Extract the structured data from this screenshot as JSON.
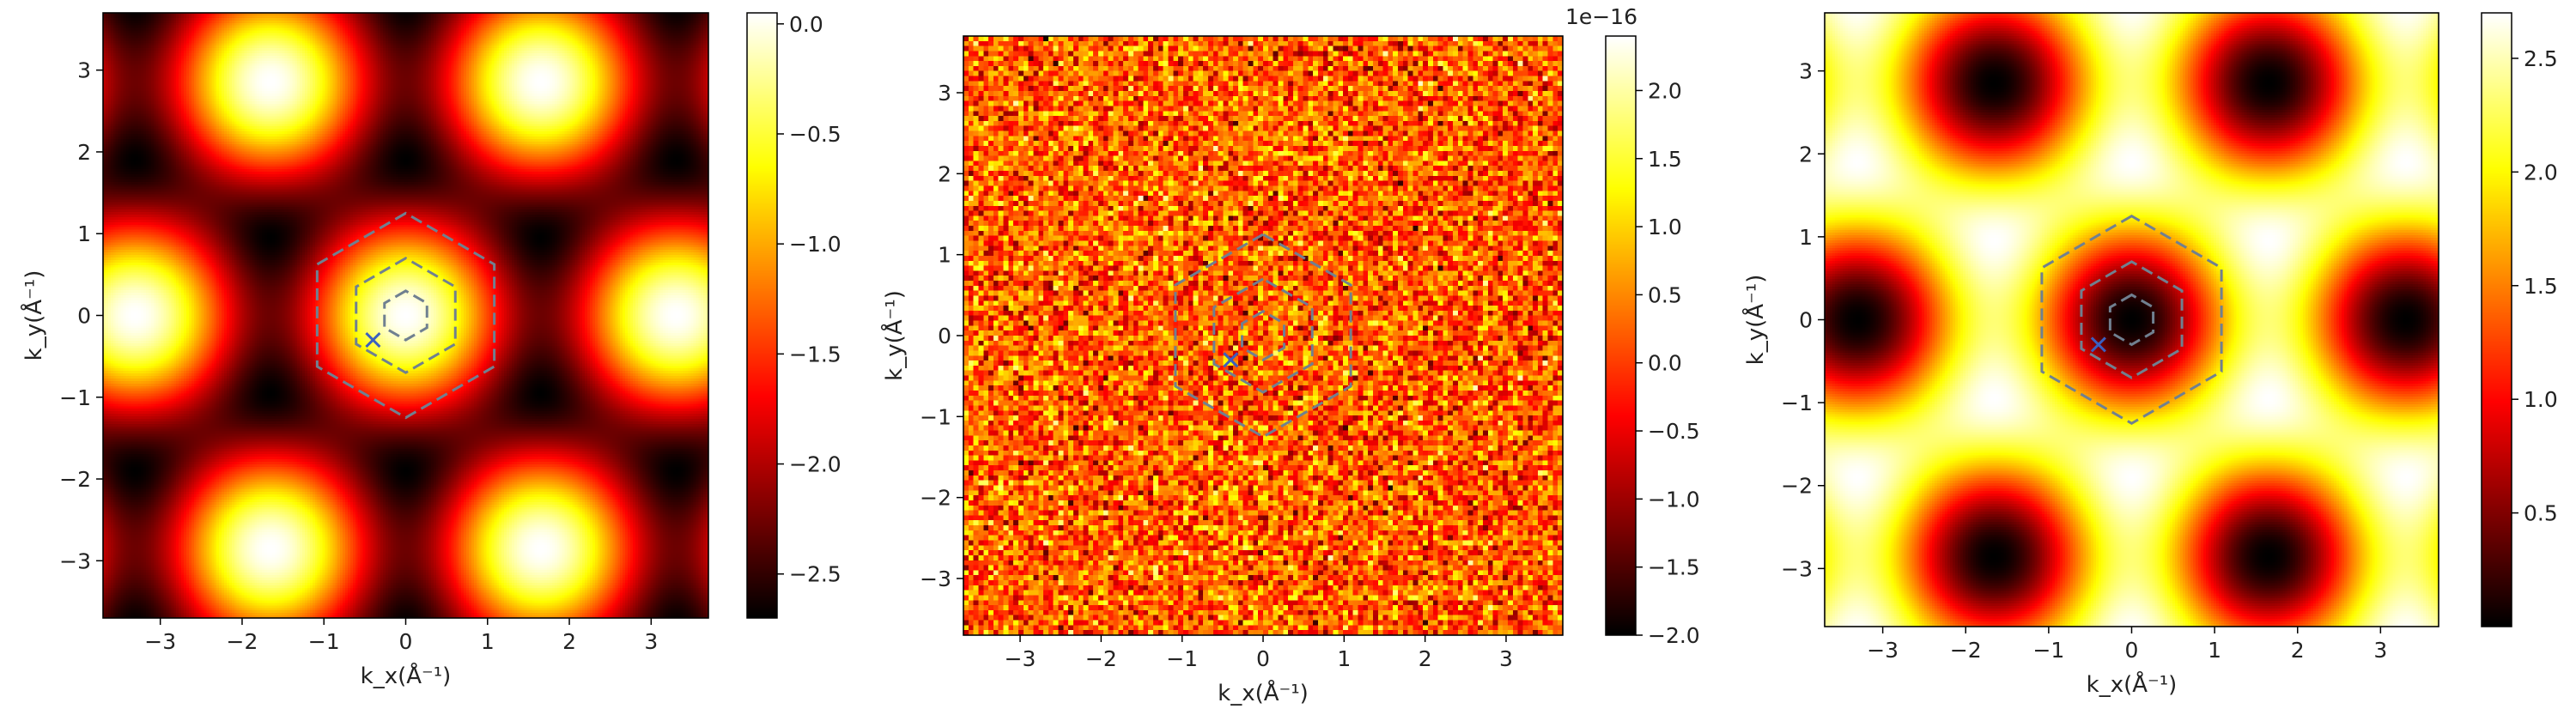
{
  "chart_data": [
    {
      "type": "heatmap",
      "xlabel": "k_x(Å⁻¹)",
      "ylabel": "k_y(Å⁻¹)",
      "xlim": [
        -3.7,
        3.7
      ],
      "ylim": [
        -3.7,
        3.7
      ],
      "x_ticks": [
        -3,
        -2,
        -1,
        0,
        1,
        2,
        3
      ],
      "y_ticks": [
        -3,
        -2,
        -1,
        0,
        1,
        2,
        3
      ],
      "colormap": "hot",
      "colorbar": {
        "range": [
          -2.7,
          0.05
        ],
        "ticks": [
          0.0,
          -0.5,
          -1.0,
          -1.5,
          -2.0,
          -2.5
        ],
        "tick_labels": [
          "0.0",
          "−0.5",
          "−1.0",
          "−1.5",
          "−2.0",
          "−2.5"
        ],
        "offset_text": ""
      },
      "pattern": "periodic",
      "hexagons": {
        "color": "#708090",
        "style": "dashed",
        "radii": [
          1.25,
          0.7,
          0.3
        ]
      },
      "marker": {
        "symbol": "x",
        "x": -0.4,
        "y": -0.3,
        "color": "#3a5fbf"
      }
    },
    {
      "type": "heatmap",
      "xlabel": "k_x(Å⁻¹)",
      "ylabel": "k_y(Å⁻¹)",
      "xlim": [
        -3.7,
        3.7
      ],
      "ylim": [
        -3.7,
        3.7
      ],
      "x_ticks": [
        -3,
        -2,
        -1,
        0,
        1,
        2,
        3
      ],
      "y_ticks": [
        -3,
        -2,
        -1,
        0,
        1,
        2,
        3
      ],
      "colormap": "hot",
      "colorbar": {
        "range": [
          -2.0,
          2.4
        ],
        "ticks": [
          2.0,
          1.5,
          1.0,
          0.5,
          0.0,
          -0.5,
          -1.0,
          -1.5,
          -2.0
        ],
        "tick_labels": [
          "2.0",
          "1.5",
          "1.0",
          "0.5",
          "0.0",
          "−0.5",
          "−1.0",
          "−1.5",
          "−2.0"
        ],
        "offset_text": "1e−16"
      },
      "pattern": "noise",
      "hexagons": {
        "color": "#708090",
        "style": "dashed",
        "radii": [
          1.25,
          0.7,
          0.3
        ]
      },
      "marker": {
        "symbol": "x",
        "x": -0.4,
        "y": -0.3,
        "color": "#3a5fbf"
      }
    },
    {
      "type": "heatmap",
      "xlabel": "k_x(Å⁻¹)",
      "ylabel": "k_y(Å⁻¹)",
      "xlim": [
        -3.7,
        3.7
      ],
      "ylim": [
        -3.7,
        3.7
      ],
      "x_ticks": [
        -3,
        -2,
        -1,
        0,
        1,
        2,
        3
      ],
      "y_ticks": [
        -3,
        -2,
        -1,
        0,
        1,
        2,
        3
      ],
      "colormap": "hot",
      "colorbar": {
        "range": [
          0.0,
          2.7
        ],
        "ticks": [
          2.5,
          2.0,
          1.5,
          1.0,
          0.5
        ],
        "tick_labels": [
          "2.5",
          "2.0",
          "1.5",
          "1.0",
          "0.5"
        ],
        "offset_text": ""
      },
      "pattern": "periodic",
      "hexagons": {
        "color": "#708090",
        "style": "dashed",
        "radii": [
          1.25,
          0.7,
          0.3
        ]
      },
      "marker": {
        "symbol": "x",
        "x": -0.4,
        "y": -0.3,
        "color": "#3a5fbf"
      }
    }
  ]
}
